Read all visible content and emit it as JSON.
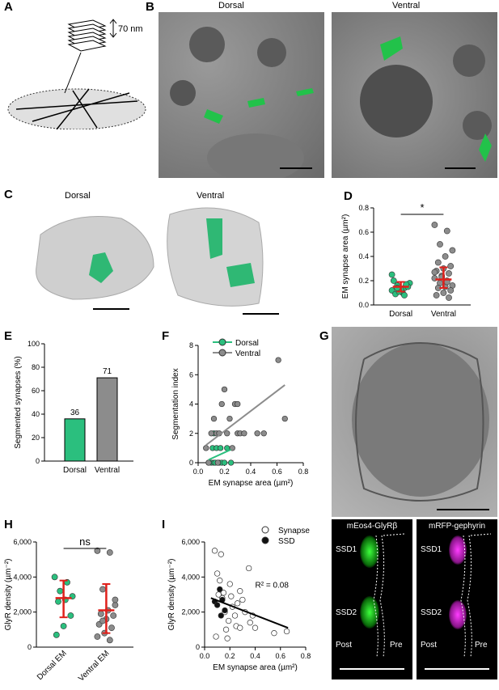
{
  "panels": {
    "A": {
      "label": "A",
      "thickness": "70 nm"
    },
    "B": {
      "label": "B",
      "left_title": "Dorsal",
      "right_title": "Ventral"
    },
    "C": {
      "label": "C",
      "left_title": "Dorsal",
      "right_title": "Ventral"
    },
    "D": {
      "label": "D"
    },
    "E": {
      "label": "E"
    },
    "F": {
      "label": "F"
    },
    "G": {
      "label": "G",
      "left_title": "mEos4-GlyRβ",
      "right_title": "mRFP-gephyrin",
      "ssd1": "SSD1",
      "ssd2": "SSD2",
      "post": "Post",
      "pre": "Pre"
    },
    "H": {
      "label": "H"
    },
    "I": {
      "label": "I"
    }
  },
  "colors": {
    "dorsal": "#2bbf7e",
    "ventral": "#8c8c8c",
    "mean": "#e0201b",
    "magenta": "#ff3cff",
    "green": "#3cff3c"
  },
  "chart_data": [
    {
      "id": "D",
      "type": "scatter",
      "ylabel": "EM synapse area (µm²)",
      "categories": [
        "Dorsal",
        "Ventral"
      ],
      "ylim": [
        0,
        0.8
      ],
      "yticks": [
        "0.0",
        "0.2",
        "0.4",
        "0.6",
        "0.8"
      ],
      "significance": "*",
      "series": [
        {
          "name": "Dorsal",
          "values": [
            0.12,
            0.14,
            0.16,
            0.18,
            0.1,
            0.09,
            0.15,
            0.13,
            0.2,
            0.17,
            0.11,
            0.25,
            0.08,
            0.14
          ]
        },
        {
          "name": "Ventral",
          "values": [
            0.66,
            0.61,
            0.5,
            0.45,
            0.4,
            0.35,
            0.32,
            0.3,
            0.28,
            0.26,
            0.24,
            0.22,
            0.2,
            0.18,
            0.16,
            0.15,
            0.14,
            0.12,
            0.1,
            0.08,
            0.06,
            0.23,
            0.27,
            0.19
          ]
        }
      ],
      "summary": [
        {
          "center": 0.15,
          "low": 0.11,
          "high": 0.19
        },
        {
          "center": 0.21,
          "low": 0.14,
          "high": 0.31
        }
      ]
    },
    {
      "id": "E",
      "type": "bar",
      "ylabel": "Segmented synapses (%)",
      "categories": [
        "Dorsal",
        "Ventral"
      ],
      "values": [
        36,
        71
      ],
      "labels": [
        "36",
        "71"
      ],
      "ylim": [
        0,
        100
      ],
      "yticks": [
        "0",
        "20",
        "40",
        "60",
        "80",
        "100"
      ]
    },
    {
      "id": "F",
      "type": "scatter",
      "xlabel": "EM synapse area (µm²)",
      "ylabel": "Segmentation index",
      "xlim": [
        0,
        0.8
      ],
      "ylim": [
        0,
        8
      ],
      "xticks": [
        "0.0",
        "0.2",
        "0.4",
        "0.6",
        "0.8"
      ],
      "yticks": [
        "0",
        "2",
        "4",
        "6",
        "8"
      ],
      "legend": [
        "Dorsal",
        "Ventral"
      ],
      "series": [
        {
          "name": "Dorsal",
          "points": [
            [
              0.08,
              0
            ],
            [
              0.1,
              0
            ],
            [
              0.11,
              1
            ],
            [
              0.12,
              0
            ],
            [
              0.13,
              0
            ],
            [
              0.14,
              1
            ],
            [
              0.15,
              0
            ],
            [
              0.16,
              0
            ],
            [
              0.17,
              1
            ],
            [
              0.18,
              0
            ],
            [
              0.2,
              0
            ],
            [
              0.22,
              1
            ],
            [
              0.25,
              0
            ],
            [
              0.12,
              2
            ]
          ]
        },
        {
          "name": "Ventral",
          "points": [
            [
              0.06,
              1
            ],
            [
              0.08,
              0
            ],
            [
              0.1,
              2
            ],
            [
              0.12,
              3
            ],
            [
              0.14,
              2
            ],
            [
              0.15,
              0
            ],
            [
              0.16,
              2
            ],
            [
              0.18,
              4
            ],
            [
              0.2,
              5
            ],
            [
              0.22,
              2
            ],
            [
              0.24,
              3
            ],
            [
              0.26,
              1
            ],
            [
              0.28,
              4
            ],
            [
              0.3,
              2
            ],
            [
              0.3,
              4
            ],
            [
              0.32,
              2
            ],
            [
              0.35,
              2
            ],
            [
              0.45,
              2
            ],
            [
              0.5,
              2
            ],
            [
              0.61,
              7
            ],
            [
              0.66,
              3
            ]
          ]
        }
      ],
      "trend": [
        {
          "x0": 0.08,
          "y0": 0.2,
          "x1": 0.25,
          "y1": 0.9
        },
        {
          "x0": 0.06,
          "y0": 1.2,
          "x1": 0.66,
          "y1": 5.3
        }
      ]
    },
    {
      "id": "H",
      "type": "scatter",
      "ylabel": "GlyR density (µm⁻²)",
      "categories": [
        "Dorsal EM",
        "Ventral EM"
      ],
      "ylim": [
        0,
        6000
      ],
      "yticks": [
        "0",
        "2,000",
        "4,000",
        "6,000"
      ],
      "significance": "ns",
      "series": [
        {
          "name": "Dorsal EM",
          "values": [
            4000,
            3700,
            3200,
            2900,
            2700,
            2600,
            1800,
            1200,
            700
          ]
        },
        {
          "name": "Ventral EM",
          "values": [
            5500,
            5400,
            3300,
            2400,
            2100,
            1900,
            1800,
            1600,
            1300,
            1100,
            800,
            600,
            400,
            1500,
            2700
          ]
        }
      ],
      "summary": [
        {
          "center": 2800,
          "low": 1700,
          "high": 3800
        },
        {
          "center": 2100,
          "low": 800,
          "high": 3600
        }
      ]
    },
    {
      "id": "I",
      "type": "scatter",
      "xlabel": "EM synapse area (µm²)",
      "ylabel": "GlyR density (µm⁻²)",
      "xlim": [
        0,
        0.8
      ],
      "ylim": [
        0,
        6000
      ],
      "xticks": [
        "0.0",
        "0.2",
        "0.4",
        "0.6",
        "0.8"
      ],
      "yticks": [
        "0",
        "2,000",
        "4,000",
        "6,000"
      ],
      "legend": [
        "Synapse",
        "SSD"
      ],
      "annotation": "R² = 0.08",
      "series": [
        {
          "name": "Synapse",
          "points": [
            [
              0.08,
              5500
            ],
            [
              0.1,
              4200
            ],
            [
              0.12,
              3800
            ],
            [
              0.14,
              2800
            ],
            [
              0.15,
              3100
            ],
            [
              0.16,
              2000
            ],
            [
              0.17,
              1000
            ],
            [
              0.18,
              500
            ],
            [
              0.2,
              3600
            ],
            [
              0.22,
              2300
            ],
            [
              0.24,
              1800
            ],
            [
              0.25,
              1200
            ],
            [
              0.28,
              3200
            ],
            [
              0.3,
              2700
            ],
            [
              0.32,
              2000
            ],
            [
              0.35,
              4500
            ],
            [
              0.36,
              1400
            ],
            [
              0.38,
              1800
            ],
            [
              0.4,
              1100
            ],
            [
              0.13,
              5300
            ],
            [
              0.09,
              600
            ],
            [
              0.55,
              800
            ],
            [
              0.65,
              900
            ],
            [
              0.19,
              1500
            ],
            [
              0.28,
              1100
            ],
            [
              0.21,
              2900
            ],
            [
              0.11,
              3000
            ],
            [
              0.26,
              2500
            ]
          ]
        },
        {
          "name": "SSD",
          "points": [
            [
              0.08,
              2600
            ],
            [
              0.1,
              2400
            ],
            [
              0.12,
              3300
            ],
            [
              0.14,
              2700
            ],
            [
              0.13,
              1800
            ],
            [
              0.16,
              2100
            ]
          ]
        }
      ],
      "trend": [
        {
          "x0": 0.05,
          "y0": 2800,
          "x1": 0.66,
          "y1": 1100
        }
      ]
    }
  ]
}
